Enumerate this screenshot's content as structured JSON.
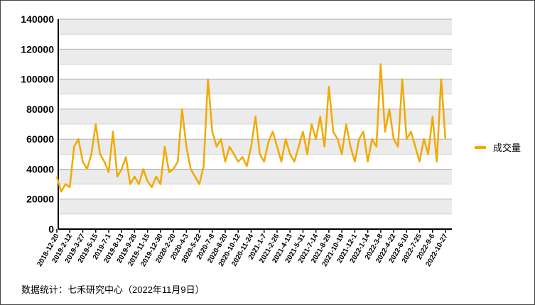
{
  "chart_data": {
    "type": "line",
    "categories": [
      "2018-12-20",
      null,
      null,
      "2019-2-12",
      null,
      null,
      "2019-3-27",
      null,
      null,
      "2019-5-15",
      null,
      null,
      "2019-7-1",
      null,
      null,
      "2019-8-13",
      null,
      null,
      "2019-9-26",
      null,
      null,
      "2019-11-15",
      null,
      null,
      "2019-12-30",
      null,
      null,
      "2020-2-20",
      null,
      null,
      "2020-4-3",
      null,
      null,
      "2020-5-22",
      null,
      null,
      "2020-7-8",
      null,
      null,
      "2020-8-20",
      null,
      null,
      "2020-10-12",
      null,
      null,
      "2020-11-24",
      null,
      null,
      "2021-1-7",
      null,
      null,
      "2021-2-26",
      null,
      null,
      "2021-4-13",
      null,
      null,
      "2021-5-31",
      null,
      null,
      "2021-7-14",
      null,
      null,
      "2021-8-26",
      null,
      null,
      "2021-10-19",
      null,
      null,
      "2021-12-1",
      null,
      null,
      "2022-1-14",
      null,
      null,
      "2022-3-8",
      null,
      null,
      "2022-4-22",
      null,
      null,
      "2022-6-10",
      null,
      null,
      "2022-7-25",
      null,
      null,
      "2022-9-6",
      null,
      null,
      "2022-10-27"
    ],
    "series": [
      {
        "name": "成交量",
        "color": "#f2a900",
        "values": [
          35000,
          25000,
          30000,
          28000,
          55000,
          60000,
          45000,
          40000,
          50000,
          70000,
          50000,
          45000,
          38000,
          65000,
          35000,
          40000,
          48000,
          30000,
          35000,
          30000,
          40000,
          32000,
          28000,
          35000,
          30000,
          55000,
          38000,
          40000,
          45000,
          80000,
          55000,
          40000,
          35000,
          30000,
          42000,
          100000,
          65000,
          55000,
          60000,
          45000,
          55000,
          50000,
          45000,
          48000,
          42000,
          55000,
          75000,
          50000,
          45000,
          58000,
          65000,
          55000,
          45000,
          60000,
          50000,
          45000,
          55000,
          65000,
          50000,
          70000,
          60000,
          75000,
          55000,
          95000,
          65000,
          60000,
          50000,
          70000,
          55000,
          45000,
          60000,
          65000,
          45000,
          60000,
          55000,
          110000,
          65000,
          80000,
          60000,
          55000,
          100000,
          60000,
          65000,
          55000,
          45000,
          60000,
          50000,
          75000,
          45000,
          100000,
          60000
        ]
      }
    ],
    "ylim": [
      0,
      140000
    ],
    "yticks": [
      0,
      20000,
      40000,
      60000,
      80000,
      100000,
      120000,
      140000
    ],
    "grid": true,
    "legend": "right",
    "source": "数据统计：七禾研究中心（2022年11月9日）"
  }
}
